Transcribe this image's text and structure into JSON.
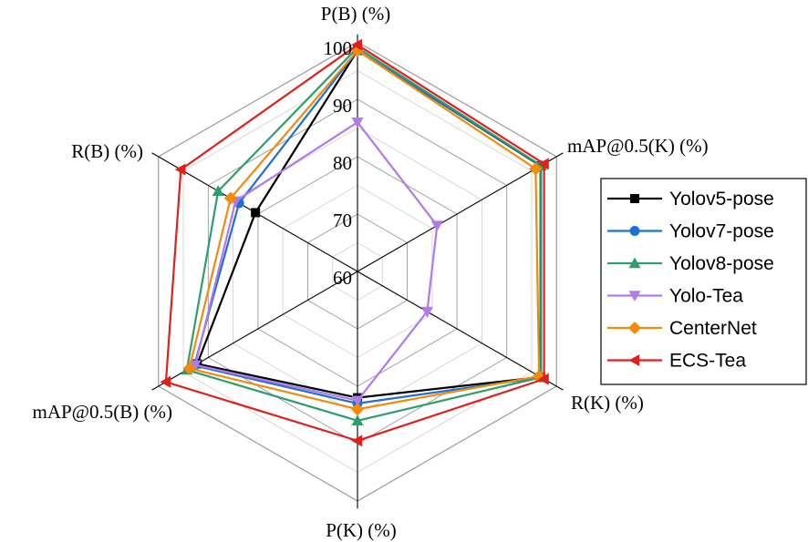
{
  "chart_data": {
    "type": "radar",
    "axes": [
      "P(B) (%)",
      "mAP@0.5(K) (%)",
      "R(K) (%)",
      "P(K) (%)",
      "mAP@0.5(B) (%)",
      "R(B) (%)"
    ],
    "rlim": [
      60,
      100
    ],
    "ticks": [
      60,
      70,
      80,
      90,
      100
    ],
    "tick_labels": [
      "60",
      "70",
      "80",
      "90",
      "100"
    ],
    "grid": true,
    "legend_position": "right",
    "series": [
      {
        "name": "Yolov5-pose",
        "color": "#000000",
        "marker": "square",
        "values": [
          98.5,
          96.8,
          96.8,
          82.0,
          92.2,
          80.5
        ]
      },
      {
        "name": "Yolov7-pose",
        "color": "#1f6fd6",
        "marker": "circle",
        "values": [
          98.5,
          96.9,
          96.9,
          83.0,
          92.8,
          83.8
        ]
      },
      {
        "name": "Yolov8-pose",
        "color": "#2e9e6e",
        "marker": "triangle-up",
        "values": [
          99.0,
          96.9,
          96.9,
          86.0,
          94.3,
          88.0
        ]
      },
      {
        "name": "Yolo-Tea",
        "color": "#b07be8",
        "marker": "triangle-down",
        "values": [
          86.0,
          76.0,
          74.0,
          82.5,
          92.6,
          84.5
        ]
      },
      {
        "name": "CenterNet",
        "color": "#f28a0a",
        "marker": "diamond",
        "values": [
          98.5,
          95.8,
          96.5,
          84.0,
          93.8,
          85.5
        ]
      },
      {
        "name": "ECS-Tea",
        "color": "#e0201a",
        "marker": "triangle-left",
        "values": [
          99.5,
          97.5,
          97.5,
          89.5,
          98.5,
          95.5
        ]
      }
    ]
  }
}
